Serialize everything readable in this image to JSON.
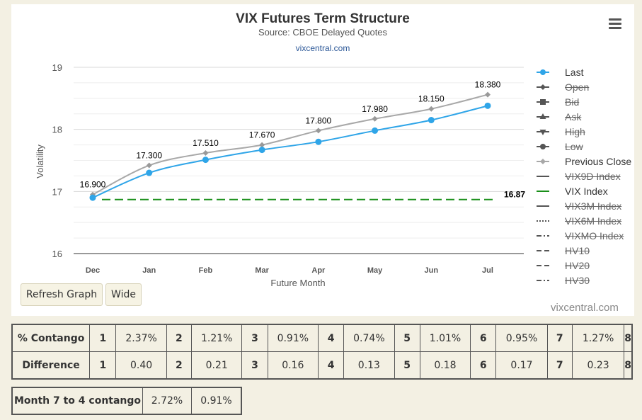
{
  "header": {
    "title": "VIX Futures Term Structure",
    "subtitle": "Source: CBOE Delayed Quotes",
    "link": "vixcentral.com",
    "watermark": "vixcentral.com"
  },
  "buttons": {
    "refresh": "Refresh Graph",
    "wide": "Wide"
  },
  "chart_data": {
    "type": "line",
    "categories": [
      "Dec",
      "Jan",
      "Feb",
      "Mar",
      "Apr",
      "May",
      "Jun",
      "Jul"
    ],
    "xlabel": "Future Month",
    "ylabel": "Volatility",
    "ylim": [
      16,
      19
    ],
    "yticks": [
      16,
      17,
      18,
      19
    ],
    "grid": true,
    "legend_position": "right",
    "series": [
      {
        "name": "Last",
        "color": "#2fa5e8",
        "marker": "circle",
        "values": [
          16.9,
          17.3,
          17.51,
          17.67,
          17.8,
          17.98,
          18.15,
          18.38
        ]
      },
      {
        "name": "Previous Close",
        "color": "#a8a8a8",
        "marker": "diamond",
        "values": [
          16.95,
          17.42,
          17.62,
          17.75,
          17.98,
          18.17,
          18.33,
          18.56
        ]
      },
      {
        "name": "VIX Index",
        "color": "#1a8f1a",
        "dash": true,
        "value": 16.87
      }
    ],
    "data_labels": [
      "16.900",
      "17.300",
      "17.510",
      "17.670",
      "17.800",
      "17.980",
      "18.150",
      "18.380"
    ],
    "vix_label": "16.87"
  },
  "legend": [
    {
      "name": "Last",
      "symbol": "circle",
      "color": "#2fa5e8",
      "enabled": true
    },
    {
      "name": "Open",
      "symbol": "diamond",
      "color": "#555555",
      "enabled": false
    },
    {
      "name": "Bid",
      "symbol": "square",
      "color": "#555555",
      "enabled": false
    },
    {
      "name": "Ask",
      "symbol": "triangle",
      "color": "#555555",
      "enabled": false
    },
    {
      "name": "High",
      "symbol": "triangle-down",
      "color": "#555555",
      "enabled": false
    },
    {
      "name": "Low",
      "symbol": "circle",
      "color": "#555555",
      "enabled": false
    },
    {
      "name": "Previous Close",
      "symbol": "diamond",
      "color": "#a8a8a8",
      "enabled": true
    },
    {
      "name": "VIX9D Index",
      "symbol": "line",
      "color": "#555555",
      "enabled": false
    },
    {
      "name": "VIX Index",
      "symbol": "line",
      "color": "#1a8f1a",
      "enabled": true
    },
    {
      "name": "VIX3M Index",
      "symbol": "line",
      "color": "#555555",
      "enabled": false
    },
    {
      "name": "VIX6M Index",
      "symbol": "dot",
      "color": "#555555",
      "enabled": false
    },
    {
      "name": "VIXMO Index",
      "symbol": "dashdot",
      "color": "#555555",
      "enabled": false
    },
    {
      "name": "HV10",
      "symbol": "dash",
      "color": "#555555",
      "enabled": false
    },
    {
      "name": "HV20",
      "symbol": "dash",
      "color": "#555555",
      "enabled": false
    },
    {
      "name": "HV30",
      "symbol": "dashdot",
      "color": "#555555",
      "enabled": false
    }
  ],
  "contango_table": {
    "row1_label": "% Contango",
    "row2_label": "Difference",
    "idx": [
      "1",
      "2",
      "3",
      "4",
      "5",
      "6",
      "7",
      "8"
    ],
    "contango": [
      "2.37%",
      "1.21%",
      "0.91%",
      "0.74%",
      "1.01%",
      "0.95%",
      "1.27%"
    ],
    "difference": [
      "0.40",
      "0.21",
      "0.16",
      "0.13",
      "0.18",
      "0.17",
      "0.23"
    ]
  },
  "month74": {
    "label": "Month 7 to 4 contango",
    "value1": "2.72%",
    "value2": "0.91%"
  }
}
